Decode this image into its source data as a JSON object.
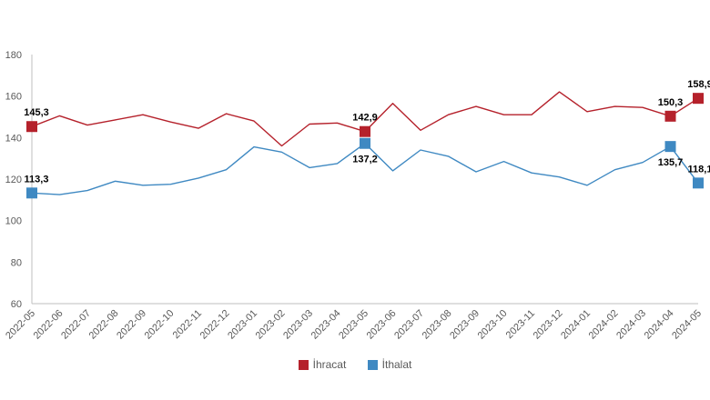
{
  "chart_data": {
    "type": "line",
    "categories": [
      "2022-05",
      "2022-06",
      "2022-07",
      "2022-08",
      "2022-09",
      "2022-10",
      "2022-11",
      "2022-12",
      "2023-01",
      "2023-02",
      "2023-03",
      "2023-04",
      "2023-05",
      "2023-06",
      "2023-07",
      "2023-08",
      "2023-09",
      "2023-10",
      "2023-11",
      "2023-12",
      "2024-01",
      "2024-02",
      "2024-03",
      "2024-04",
      "2024-05"
    ],
    "ylim": [
      60,
      180
    ],
    "yticks": [
      60,
      80,
      100,
      120,
      140,
      160,
      180
    ],
    "series": [
      {
        "name": "İhracat",
        "color": "#b5212b",
        "values": [
          145.3,
          150.5,
          146.0,
          148.5,
          151.0,
          147.5,
          144.5,
          151.5,
          148.0,
          136.0,
          146.5,
          147.0,
          142.9,
          156.5,
          143.5,
          151.0,
          155.0,
          151.0,
          151.0,
          162.0,
          152.5,
          155.0,
          154.5,
          150.3,
          158.9
        ],
        "labels": [
          {
            "index": 0,
            "text": "145,3"
          },
          {
            "index": 12,
            "text": "142,9"
          },
          {
            "index": 23,
            "text": "150,3"
          },
          {
            "index": 24,
            "text": "158,9"
          }
        ]
      },
      {
        "name": "İthalat",
        "color": "#3f89c2",
        "values": [
          113.3,
          112.5,
          114.5,
          119.0,
          117.0,
          117.5,
          120.5,
          124.5,
          135.5,
          133.0,
          125.5,
          127.5,
          137.2,
          124.0,
          134.0,
          131.0,
          123.5,
          128.5,
          123.0,
          121.0,
          117.0,
          124.5,
          128.0,
          135.7,
          118.1
        ],
        "labels": [
          {
            "index": 0,
            "text": "113,3"
          },
          {
            "index": 12,
            "text": "137,2"
          },
          {
            "index": 23,
            "text": "135,7"
          },
          {
            "index": 24,
            "text": "118,1"
          }
        ]
      }
    ],
    "grid": false,
    "legend": "bottom"
  }
}
